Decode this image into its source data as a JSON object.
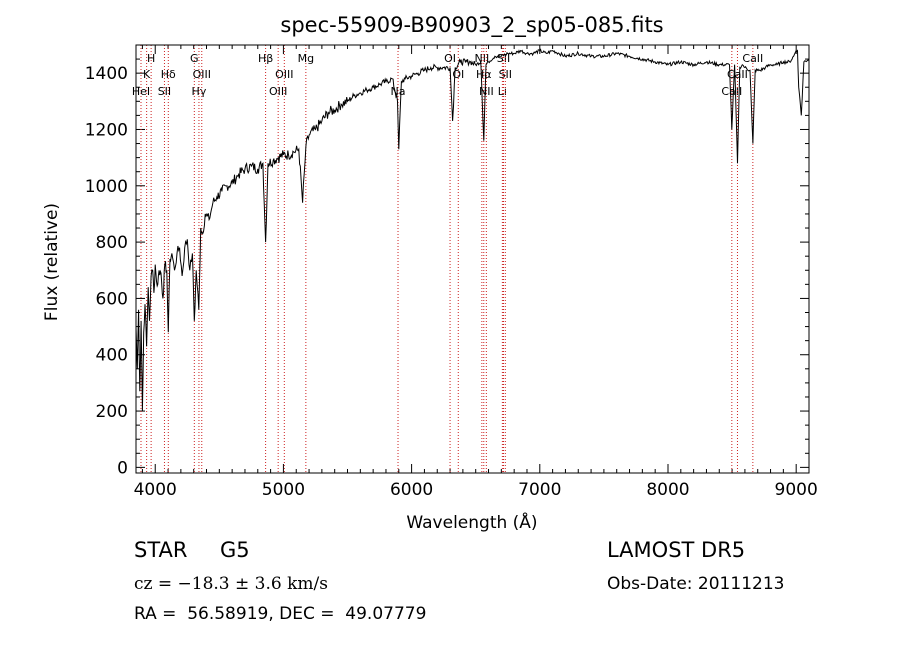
{
  "chart_data": {
    "type": "line",
    "title": "spec-55909-B90903_2_sp05-085.fits",
    "xlabel": "Wavelength (Å)",
    "ylabel": "Flux (relative)",
    "xlim": [
      3850,
      9100
    ],
    "ylim": [
      -20,
      1500
    ],
    "xticks": [
      4000,
      5000,
      6000,
      7000,
      8000,
      9000
    ],
    "yticks": [
      0,
      200,
      400,
      600,
      800,
      1000,
      1200,
      1400
    ],
    "grid": false,
    "series_color": "#000000",
    "line_color": "#cc2222",
    "spectrum": {
      "x": [
        3850,
        3860,
        3870,
        3880,
        3890,
        3900,
        3910,
        3920,
        3933,
        3945,
        3955,
        3968,
        3980,
        3990,
        4000,
        4010,
        4020,
        4030,
        4045,
        4060,
        4075,
        4090,
        4102,
        4115,
        4130,
        4150,
        4170,
        4190,
        4210,
        4230,
        4250,
        4270,
        4290,
        4305,
        4320,
        4340,
        4355,
        4370,
        4390,
        4420,
        4450,
        4480,
        4520,
        4560,
        4600,
        4650,
        4700,
        4750,
        4800,
        4840,
        4861,
        4880,
        4920,
        4960,
        5000,
        5040,
        5080,
        5120,
        5150,
        5175,
        5200,
        5250,
        5300,
        5350,
        5400,
        5450,
        5500,
        5550,
        5600,
        5650,
        5700,
        5750,
        5800,
        5850,
        5890,
        5900,
        5920,
        5950,
        6000,
        6050,
        6100,
        6150,
        6200,
        6250,
        6300,
        6320,
        6340,
        6380,
        6420,
        6460,
        6500,
        6540,
        6563,
        6580,
        6600,
        6650,
        6700,
        6750,
        6800,
        6850,
        6900,
        6950,
        7000,
        7050,
        7100,
        7150,
        7200,
        7300,
        7400,
        7500,
        7600,
        7700,
        7800,
        7900,
        8000,
        8100,
        8200,
        8300,
        8400,
        8480,
        8498,
        8520,
        8542,
        8560,
        8580,
        8600,
        8640,
        8662,
        8680,
        8720,
        8760,
        8800,
        8850,
        8900,
        8950,
        8980,
        9000,
        9010,
        9020,
        9040,
        9060,
        9100
      ],
      "y": [
        500,
        350,
        560,
        270,
        520,
        200,
        480,
        580,
        430,
        640,
        520,
        680,
        700,
        620,
        720,
        660,
        650,
        700,
        690,
        600,
        720,
        700,
        480,
        740,
        760,
        700,
        760,
        780,
        680,
        780,
        810,
        700,
        760,
        520,
        700,
        560,
        850,
        830,
        900,
        880,
        940,
        960,
        980,
        1000,
        1010,
        1040,
        1060,
        1070,
        1060,
        1080,
        800,
        1080,
        1090,
        1100,
        1110,
        1110,
        1120,
        1130,
        940,
        1140,
        1180,
        1200,
        1230,
        1260,
        1270,
        1290,
        1300,
        1320,
        1330,
        1340,
        1350,
        1360,
        1370,
        1380,
        1300,
        1130,
        1370,
        1380,
        1390,
        1400,
        1410,
        1420,
        1420,
        1420,
        1420,
        1230,
        1420,
        1440,
        1440,
        1440,
        1430,
        1440,
        1160,
        1430,
        1440,
        1460,
        1460,
        1470,
        1470,
        1480,
        1470,
        1470,
        1480,
        1470,
        1480,
        1470,
        1460,
        1470,
        1460,
        1460,
        1470,
        1460,
        1450,
        1440,
        1430,
        1440,
        1430,
        1440,
        1430,
        1430,
        1200,
        1430,
        1080,
        1420,
        1430,
        1420,
        1410,
        1150,
        1410,
        1410,
        1420,
        1430,
        1430,
        1440,
        1440,
        1460,
        1480,
        1480,
        1350,
        1250,
        1440,
        1450
      ]
    },
    "line_ids": [
      {
        "wl": 3889,
        "label": "HeI",
        "row": 3
      },
      {
        "wl": 3933,
        "label": "K",
        "row": 2
      },
      {
        "wl": 3968,
        "label": "H",
        "row": 1
      },
      {
        "wl": 4102,
        "label": "Hδ",
        "row": 2
      },
      {
        "wl": 4072,
        "label": "SII",
        "row": 3
      },
      {
        "wl": 4305,
        "label": "G",
        "row": 1
      },
      {
        "wl": 4341,
        "label": "Hγ",
        "row": 3
      },
      {
        "wl": 4363,
        "label": "OIII",
        "row": 2
      },
      {
        "wl": 4861,
        "label": "Hβ",
        "row": 1
      },
      {
        "wl": 4959,
        "label": "OIII",
        "row": 3
      },
      {
        "wl": 5007,
        "label": "OIII",
        "row": 2
      },
      {
        "wl": 5175,
        "label": "Mg",
        "row": 1
      },
      {
        "wl": 5894,
        "label": "Na",
        "row": 3
      },
      {
        "wl": 6300,
        "label": "OI",
        "row": 1
      },
      {
        "wl": 6364,
        "label": "OI",
        "row": 2
      },
      {
        "wl": 6548,
        "label": "NII",
        "row": 1
      },
      {
        "wl": 6563,
        "label": "Hα",
        "row": 2
      },
      {
        "wl": 6583,
        "label": "NII",
        "row": 3
      },
      {
        "wl": 6708,
        "label": "Li",
        "row": 3
      },
      {
        "wl": 6717,
        "label": "SII",
        "row": 1
      },
      {
        "wl": 6731,
        "label": "SII",
        "row": 2
      },
      {
        "wl": 8498,
        "label": "CaII",
        "row": 3
      },
      {
        "wl": 8542,
        "label": "CaII",
        "row": 2
      },
      {
        "wl": 8662,
        "label": "CaII",
        "row": 1
      }
    ]
  },
  "info": {
    "object_class": "STAR",
    "subclass": "G5",
    "survey": "LAMOST DR5",
    "cz": "cz = −18.3 ± 3.6 km/s",
    "obs_date": "Obs-Date: 20111213",
    "radec": "RA =  56.58919, DEC =  49.07779"
  }
}
